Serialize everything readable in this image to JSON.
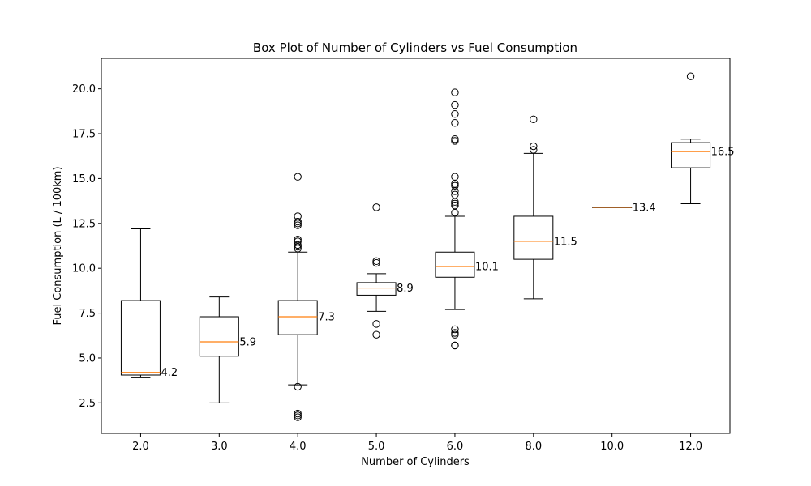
{
  "chart_data": {
    "type": "box",
    "title": "Box Plot of Number of Cylinders vs Fuel Consumption",
    "xlabel": "Number of Cylinders",
    "ylabel": "Fuel Consumption (L / 100km)",
    "categories": [
      "2.0",
      "3.0",
      "4.0",
      "5.0",
      "6.0",
      "8.0",
      "10.0",
      "12.0"
    ],
    "ylim": [
      0.8,
      21.7
    ],
    "yticks": [
      2.5,
      5.0,
      7.5,
      10.0,
      12.5,
      15.0,
      17.5,
      20.0
    ],
    "ytick_labels": [
      "2.5",
      "5.0",
      "7.5",
      "10.0",
      "12.5",
      "15.0",
      "17.5",
      "20.0"
    ],
    "grid": false,
    "colors": {
      "box": "#000000",
      "median": "#ff7f0e",
      "flier": "#000000"
    },
    "boxes": [
      {
        "category": "2.0",
        "whisker_low": 3.9,
        "q1": 4.05,
        "median": 4.2,
        "q3": 8.2,
        "whisker_high": 12.2,
        "median_label": "4.2",
        "outliers": []
      },
      {
        "category": "3.0",
        "whisker_low": 2.5,
        "q1": 5.1,
        "median": 5.9,
        "q3": 7.3,
        "whisker_high": 8.4,
        "median_label": "5.9",
        "outliers": []
      },
      {
        "category": "4.0",
        "whisker_low": 3.5,
        "q1": 6.3,
        "median": 7.3,
        "q3": 8.2,
        "whisker_high": 10.9,
        "median_label": "7.3",
        "outliers": [
          15.1,
          12.9,
          12.6,
          12.5,
          12.4,
          11.6,
          11.5,
          11.3,
          11.2,
          11.1,
          3.4,
          1.9,
          1.8,
          1.7
        ]
      },
      {
        "category": "5.0",
        "whisker_low": 7.6,
        "q1": 8.5,
        "median": 8.9,
        "q3": 9.2,
        "whisker_high": 9.7,
        "median_label": "8.9",
        "outliers": [
          13.4,
          10.4,
          10.3,
          6.9,
          6.3
        ]
      },
      {
        "category": "6.0",
        "whisker_low": 7.7,
        "q1": 9.5,
        "median": 10.1,
        "q3": 10.9,
        "whisker_high": 12.9,
        "median_label": "10.1",
        "outliers": [
          19.8,
          19.1,
          18.6,
          18.1,
          17.2,
          17.1,
          15.1,
          14.7,
          14.6,
          14.3,
          14.1,
          13.7,
          13.6,
          13.5,
          13.1,
          6.6,
          6.4,
          6.3,
          5.7,
          5.7
        ]
      },
      {
        "category": "8.0",
        "whisker_low": 8.3,
        "q1": 10.5,
        "median": 11.5,
        "q3": 12.9,
        "whisker_high": 16.4,
        "median_label": "11.5",
        "outliers": [
          18.3,
          16.8,
          16.6
        ]
      },
      {
        "category": "10.0",
        "whisker_low": 13.4,
        "q1": 13.4,
        "median": 13.4,
        "q3": 13.4,
        "whisker_high": 13.4,
        "median_label": "13.4",
        "outliers": []
      },
      {
        "category": "12.0",
        "whisker_low": 13.6,
        "q1": 15.6,
        "median": 16.5,
        "q3": 17.0,
        "whisker_high": 17.2,
        "median_label": "16.5",
        "outliers": [
          20.7
        ]
      }
    ]
  }
}
